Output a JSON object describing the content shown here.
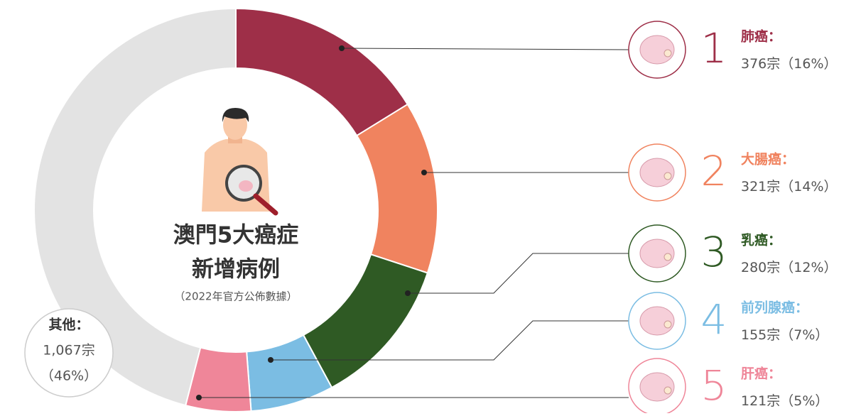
{
  "chart_data": {
    "type": "pie",
    "title": "澳門5大癌症",
    "subtitle": "新增病例",
    "note": "（2022年官方公佈數據）",
    "categories": [
      "肺癌：",
      "大腸癌：",
      "乳癌：",
      "前列腺癌：",
      "肝癌：",
      "其他："
    ],
    "values": [
      376,
      321,
      280,
      155,
      121,
      1067
    ],
    "value_labels": [
      "376宗",
      "321宗",
      "280宗",
      "155宗",
      "121宗",
      "1,067宗"
    ],
    "percents": [
      16,
      14,
      12,
      7,
      5,
      46
    ],
    "percent_labels": [
      "（16%）",
      "（14%）",
      "（12%）",
      "（7%）",
      "（5%）",
      "（46%）"
    ],
    "ranks": [
      1,
      2,
      3,
      4,
      5
    ],
    "colors": [
      "#9e2f48",
      "#f0835f",
      "#2f5a24",
      "#7bbde3",
      "#ef8699",
      "#e3e3e3"
    ]
  }
}
